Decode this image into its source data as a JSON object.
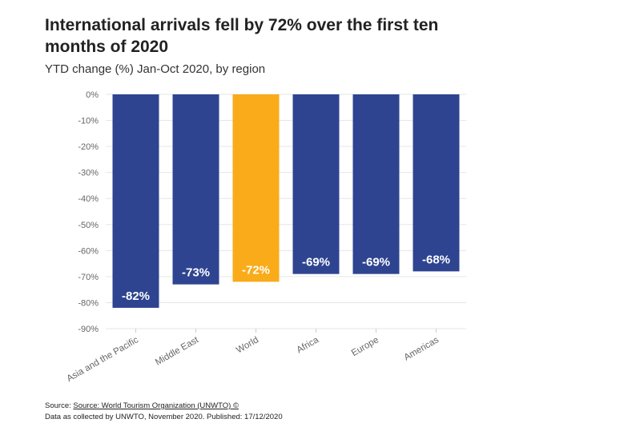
{
  "title": "International arrivals fell by 72% over the first ten months of 2020",
  "subtitle": "YTD change (%) Jan-Oct 2020, by region",
  "colors": {
    "default_bar": "#2e4490",
    "highlight_bar": "#f9ab19",
    "grid": "#e6e6e6",
    "axis_text": "#666666"
  },
  "chart_data": {
    "type": "bar",
    "categories": [
      "Asia and the Pacific",
      "Middle East",
      "World",
      "Africa",
      "Europe",
      "Americas"
    ],
    "values": [
      -82,
      -73,
      -72,
      -69,
      -69,
      -68
    ],
    "data_labels": [
      "-82%",
      "-73%",
      "-72%",
      "-69%",
      "-69%",
      "-68%"
    ],
    "highlight": "World",
    "ylim": [
      -90,
      0
    ],
    "yticks": [
      0,
      -10,
      -20,
      -30,
      -40,
      -50,
      -60,
      -70,
      -80,
      -90
    ],
    "ytick_labels": [
      "0%",
      "-10%",
      "-20%",
      "-30%",
      "-40%",
      "-50%",
      "-60%",
      "-70%",
      "-80%",
      "-90%"
    ],
    "xlabel": "",
    "ylabel": "",
    "grid": true,
    "legend": "none"
  },
  "footer": {
    "source_prefix": "Source: ",
    "source_link": "Source: World Tourism Organization (UNWTO) ©",
    "note": "Data as collected by UNWTO, November 2020. Published: 17/12/2020"
  }
}
